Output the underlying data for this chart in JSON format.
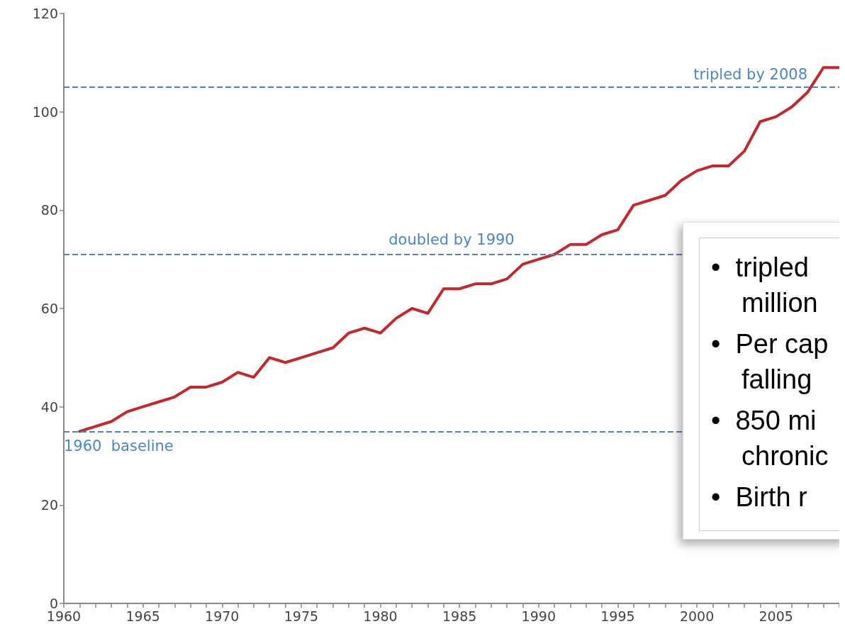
{
  "chart_data": {
    "type": "line",
    "x": [
      1961,
      1962,
      1963,
      1964,
      1965,
      1966,
      1967,
      1968,
      1969,
      1970,
      1971,
      1972,
      1973,
      1974,
      1975,
      1976,
      1977,
      1978,
      1979,
      1980,
      1981,
      1982,
      1983,
      1984,
      1985,
      1986,
      1987,
      1988,
      1989,
      1990,
      1991,
      1992,
      1993,
      1994,
      1995,
      1996,
      1997,
      1998,
      1999,
      2000,
      2001,
      2002,
      2003,
      2004,
      2005,
      2006,
      2007,
      2008,
      2009
    ],
    "series": [
      {
        "color": "#c3282d",
        "values": [
          35,
          36,
          37,
          39,
          40,
          41,
          42,
          44,
          44,
          45,
          47,
          46,
          50,
          49,
          50,
          51,
          52,
          55,
          56,
          55,
          58,
          60,
          59,
          64,
          64,
          65,
          65,
          66,
          69,
          70,
          71,
          73,
          73,
          75,
          76,
          81,
          82,
          83,
          86,
          88,
          89,
          89,
          92,
          98,
          99,
          101,
          104,
          109,
          109
        ]
      }
    ],
    "xlim": [
      1960,
      2009
    ],
    "xticks": [
      1960,
      {
        "value": 1961,
        "label": null
      },
      {
        "value": 1962,
        "label": null
      },
      {
        "value": 1963,
        "label": null
      },
      {
        "value": 1964,
        "label": null
      },
      1965,
      {
        "value": 1966,
        "label": null
      },
      {
        "value": 1967,
        "label": null
      },
      {
        "value": 1968,
        "label": null
      },
      {
        "value": 1969,
        "label": null
      },
      1970,
      {
        "value": 1971,
        "label": null
      },
      {
        "value": 1972,
        "label": null
      },
      {
        "value": 1973,
        "label": null
      },
      {
        "value": 1974,
        "label": null
      },
      1975,
      {
        "value": 1976,
        "label": null
      },
      {
        "value": 1977,
        "label": null
      },
      {
        "value": 1978,
        "label": null
      },
      {
        "value": 1979,
        "label": null
      },
      1980,
      {
        "value": 1981,
        "label": null
      },
      {
        "value": 1982,
        "label": null
      },
      {
        "value": 1983,
        "label": null
      },
      {
        "value": 1984,
        "label": null
      },
      1985,
      {
        "value": 1986,
        "label": null
      },
      {
        "value": 1987,
        "label": null
      },
      {
        "value": 1988,
        "label": null
      },
      {
        "value": 1989,
        "label": null
      },
      1990,
      {
        "value": 1991,
        "label": null
      },
      {
        "value": 1992,
        "label": null
      },
      {
        "value": 1993,
        "label": null
      },
      {
        "value": 1994,
        "label": null
      },
      1995,
      {
        "value": 1996,
        "label": null
      },
      {
        "value": 1997,
        "label": null
      },
      {
        "value": 1998,
        "label": null
      },
      {
        "value": 1999,
        "label": null
      },
      2000,
      {
        "value": 2001,
        "label": null
      },
      {
        "value": 2002,
        "label": null
      },
      {
        "value": 2003,
        "label": null
      },
      {
        "value": 2004,
        "label": null
      },
      2005,
      {
        "value": 2006,
        "label": null
      },
      {
        "value": 2007,
        "label": null
      },
      {
        "value": 2008,
        "label": null
      },
      {
        "value": 2009,
        "label": null
      }
    ],
    "ylim": [
      0,
      120
    ],
    "yticks": [
      0,
      20,
      40,
      60,
      80,
      100,
      120
    ],
    "ref_lines": [
      {
        "axis": "y",
        "value": 35,
        "label": "1960  baseline",
        "color": "#4a86c8",
        "line_style": "dashed"
      },
      {
        "axis": "y",
        "value": 71,
        "label": "doubled by 1990",
        "color": "#4a86c8",
        "line_style": "dashed"
      },
      {
        "axis": "y",
        "value": 105,
        "label": "tripled by 2008",
        "color": "#4a86c8",
        "line_style": "dashed"
      }
    ],
    "annotations": [
      "•  tripled\nmillion",
      "•  Per cap\nfalling",
      "•  850 mi\nchronic",
      "•  Birth r"
    ],
    "grid": false,
    "marker": "none",
    "line_style": "solid"
  }
}
